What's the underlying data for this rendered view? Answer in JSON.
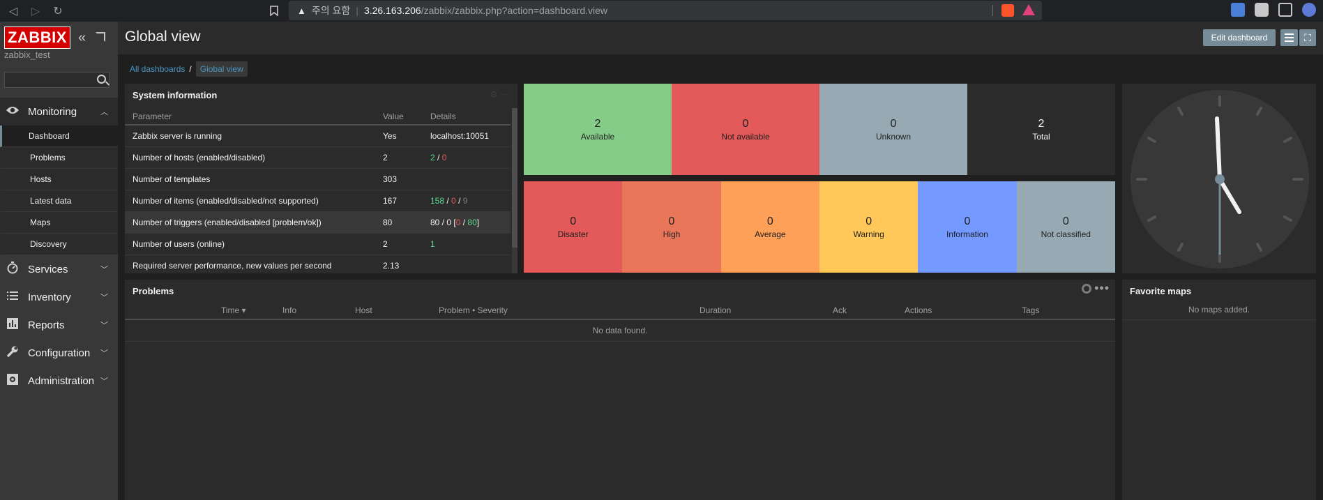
{
  "browser": {
    "warning_text": "주의 요함",
    "url_host": "3.26.163.206",
    "url_path": "/zabbix/zabbix.php?action=dashboard.view"
  },
  "sidebar": {
    "logo": "ZABBIX",
    "server_name": "zabbix_test",
    "search_placeholder": "",
    "menu": [
      {
        "label": "Monitoring",
        "icon": "eye-icon"
      },
      {
        "label": "Services",
        "icon": "stopwatch-icon"
      },
      {
        "label": "Inventory",
        "icon": "list-icon"
      },
      {
        "label": "Reports",
        "icon": "bar-chart-icon"
      },
      {
        "label": "Configuration",
        "icon": "wrench-icon"
      },
      {
        "label": "Administration",
        "icon": "gear-box-icon"
      }
    ],
    "monitoring_submenu": [
      "Dashboard",
      "Problems",
      "Hosts",
      "Latest data",
      "Maps",
      "Discovery"
    ]
  },
  "header": {
    "title": "Global view",
    "edit_label": "Edit dashboard"
  },
  "breadcrumb": {
    "all": "All dashboards",
    "sep": "/",
    "current": "Global view"
  },
  "sysinfo": {
    "title": "System information",
    "columns": [
      "Parameter",
      "Value",
      "Details"
    ],
    "rows": [
      {
        "param": "Zabbix server is running",
        "value": "Yes",
        "details": "localhost:10051"
      },
      {
        "param": "Number of hosts (enabled/disabled)",
        "value": "2",
        "d1": "2",
        "d2": "0"
      },
      {
        "param": "Number of templates",
        "value": "303"
      },
      {
        "param": "Number of items (enabled/disabled/not supported)",
        "value": "167",
        "d1": "158",
        "d2": "0",
        "d3": "9"
      },
      {
        "param": "Number of triggers (enabled/disabled [problem/ok])",
        "value": "80",
        "d0": "80 / 0 [",
        "d2": "0",
        "d1": "80",
        "dend": "]"
      },
      {
        "param": "Number of users (online)",
        "value": "2",
        "d1": "1"
      },
      {
        "param": "Required server performance, new values per second",
        "value": "2.13"
      }
    ]
  },
  "host_availability": [
    {
      "count": "2",
      "label": "Available",
      "color": "#86cc89"
    },
    {
      "count": "0",
      "label": "Not available",
      "color": "#e45959"
    },
    {
      "count": "0",
      "label": "Unknown",
      "color": "#97aab3"
    },
    {
      "count": "2",
      "label": "Total",
      "color": "#2b2b2b"
    }
  ],
  "problems_by_severity": [
    {
      "count": "0",
      "label": "Disaster",
      "color": "#e45959"
    },
    {
      "count": "0",
      "label": "High",
      "color": "#e97659"
    },
    {
      "count": "0",
      "label": "Average",
      "color": "#ffa059"
    },
    {
      "count": "0",
      "label": "Warning",
      "color": "#ffc859"
    },
    {
      "count": "0",
      "label": "Information",
      "color": "#7499ff"
    },
    {
      "count": "0",
      "label": "Not classified",
      "color": "#97aab3"
    }
  ],
  "problems": {
    "title": "Problems",
    "columns": [
      "Time ▾",
      "Info",
      "Host",
      "Problem • Severity",
      "Duration",
      "Ack",
      "Actions",
      "Tags"
    ],
    "empty": "No data found."
  },
  "favorite_maps": {
    "title": "Favorite maps",
    "empty": "No maps added."
  }
}
